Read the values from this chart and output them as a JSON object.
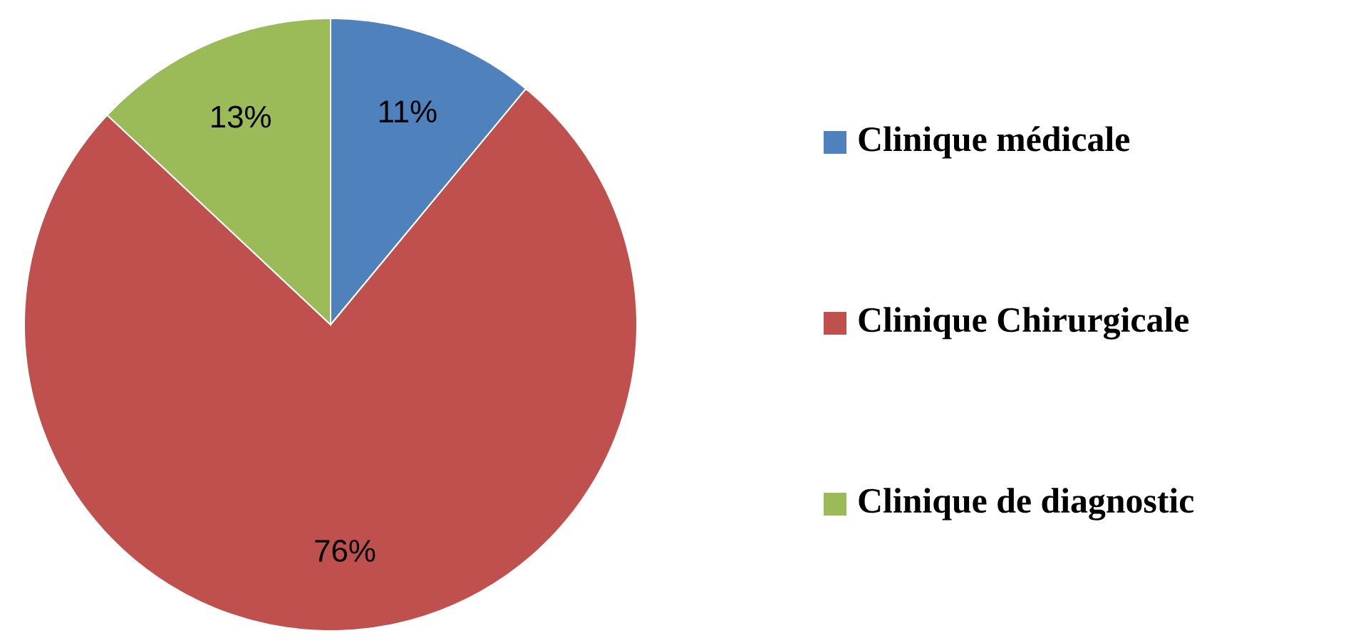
{
  "chart_data": {
    "type": "pie",
    "categories": [
      "Clinique médicale",
      "Clinique Chirurgicale",
      "Clinique de diagnostic"
    ],
    "values": [
      11,
      76,
      13
    ],
    "colors": [
      "#4f81bd",
      "#c0504d",
      "#9bbb59"
    ],
    "value_labels": [
      "11%",
      "76%",
      "13%"
    ],
    "legend": "right"
  }
}
